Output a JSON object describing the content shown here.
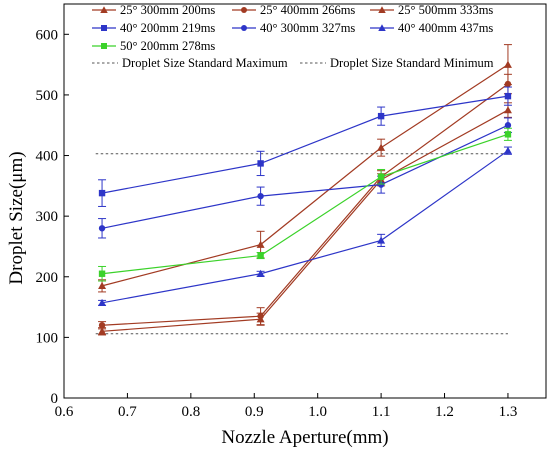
{
  "chart_data": {
    "type": "line",
    "title": "",
    "xlabel": "Nozzle Aperture(mm)",
    "ylabel": "Droplet Size(μm)",
    "xlim": [
      0.6,
      1.36
    ],
    "ylim": [
      0,
      650
    ],
    "xticks": [
      0.6,
      0.7,
      0.8,
      0.9,
      1.0,
      1.1,
      1.2,
      1.3
    ],
    "yticks": [
      0,
      100,
      200,
      300,
      400,
      500,
      600
    ],
    "x": [
      0.66,
      0.91,
      1.1,
      1.3
    ],
    "legend_position": "top",
    "series": [
      {
        "name": "25° 300mm 200ms",
        "color": "#a23b23",
        "marker": "triangle-up",
        "values": [
          110,
          130,
          360,
          475
        ],
        "errors": [
          6,
          10,
          10,
          12
        ]
      },
      {
        "name": "25° 400mm 266ms",
        "color": "#a23b23",
        "marker": "circle",
        "values": [
          120,
          135,
          365,
          518
        ],
        "errors": [
          6,
          14,
          10,
          16
        ]
      },
      {
        "name": "25° 500mm 333ms",
        "color": "#a23b23",
        "marker": "triangle-up",
        "values": [
          185,
          253,
          413,
          550
        ],
        "errors": [
          10,
          22,
          14,
          33
        ]
      },
      {
        "name": "40° 200mm 219ms",
        "color": "#2d35c8",
        "marker": "square",
        "values": [
          338,
          387,
          465,
          498
        ],
        "errors": [
          22,
          20,
          15,
          15
        ]
      },
      {
        "name": "40° 300mm 327ms",
        "color": "#2d35c8",
        "marker": "circle",
        "values": [
          280,
          333,
          352,
          450
        ],
        "errors": [
          16,
          15,
          14,
          12
        ]
      },
      {
        "name": "40° 400mm 437ms",
        "color": "#2d35c8",
        "marker": "triangle-up",
        "values": [
          157,
          205,
          260,
          408
        ],
        "errors": [
          4,
          4,
          10,
          6
        ]
      },
      {
        "name": "50° 200mm 278ms",
        "color": "#3bd22a",
        "marker": "square",
        "values": [
          205,
          235,
          365,
          435
        ],
        "errors": [
          12,
          5,
          12,
          10
        ]
      }
    ],
    "reference_lines": [
      {
        "name": "Droplet Size Standard Maximum",
        "y": 403,
        "color": "#555555",
        "style": "dashed"
      },
      {
        "name": "Droplet Size Standard Minimum",
        "y": 106,
        "color": "#555555",
        "style": "dashed"
      }
    ]
  }
}
